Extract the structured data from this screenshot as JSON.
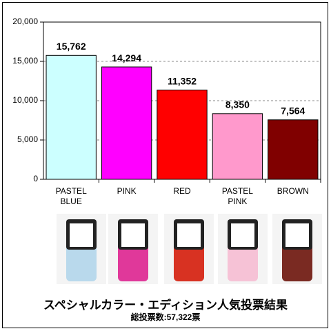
{
  "chart_data": {
    "type": "bar",
    "title": "スペシャルカラー・エディション人気投票結果",
    "subtitle": "総投票数:57,322票",
    "categories": [
      "PASTEL BLUE",
      "PINK",
      "RED",
      "PASTEL PINK",
      "BROWN"
    ],
    "values": [
      15762,
      14294,
      11352,
      8350,
      7564
    ],
    "value_labels": [
      "15,762",
      "14,294",
      "11,352",
      "8,350",
      "7,564"
    ],
    "colors": [
      "#ccffff",
      "#ff00ff",
      "#ff0000",
      "#ff99cc",
      "#800000"
    ],
    "ylim": [
      0,
      20000
    ],
    "yticks": [
      0,
      {
        "value": 5000,
        "label": "5,000"
      },
      {
        "value": 10000,
        "label": "10,000"
      },
      {
        "value": 15000,
        "label": "15,000"
      },
      {
        "value": 20000,
        "label": "20,000"
      }
    ],
    "grid": true
  }
}
